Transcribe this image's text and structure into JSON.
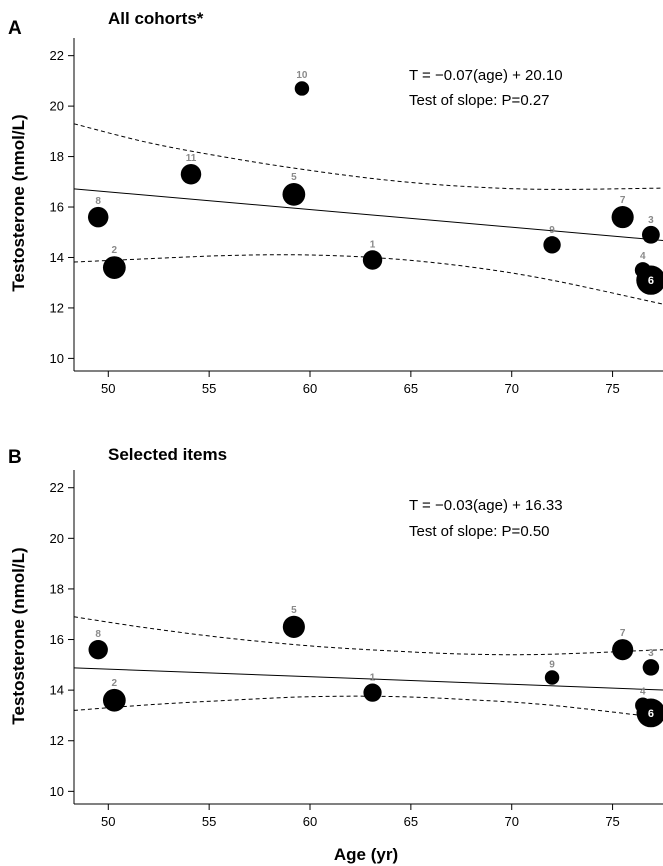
{
  "chart_data": [
    {
      "type": "scatter",
      "panel_label": "A",
      "title": "All cohorts*",
      "xlabel": "",
      "ylabel": "Testosterone (nmol/L)",
      "xlim": [
        48.3,
        77.5
      ],
      "ylim": [
        9.5,
        22.7
      ],
      "xticks": [
        50,
        55,
        60,
        65,
        70,
        75
      ],
      "yticks": [
        10,
        12,
        14,
        16,
        18,
        20,
        22
      ],
      "annotations": [
        "T = −0.07(age) + 20.10",
        "Test of slope: P=0.27"
      ],
      "regression": {
        "slope": -0.07,
        "intercept": 20.1
      },
      "ci_upper": [
        [
          48.3,
          19.3
        ],
        [
          52,
          18.55
        ],
        [
          56,
          17.95
        ],
        [
          60,
          17.45
        ],
        [
          64,
          17.05
        ],
        [
          68,
          16.8
        ],
        [
          72,
          16.7
        ],
        [
          77.5,
          16.75
        ]
      ],
      "ci_lower": [
        [
          48.3,
          13.82
        ],
        [
          52,
          13.95
        ],
        [
          56,
          14.08
        ],
        [
          60,
          14.1
        ],
        [
          64,
          13.95
        ],
        [
          68,
          13.62
        ],
        [
          72,
          13.1
        ],
        [
          77.5,
          12.15
        ]
      ],
      "points": [
        {
          "label": "1",
          "x": 63.1,
          "y": 13.9,
          "size": 2
        },
        {
          "label": "2",
          "x": 50.3,
          "y": 13.6,
          "size": 3
        },
        {
          "label": "3",
          "x": 76.9,
          "y": 14.9,
          "size": 1.6
        },
        {
          "label": "4",
          "x": 76.5,
          "y": 13.5,
          "size": 1.2
        },
        {
          "label": "5",
          "x": 59.2,
          "y": 16.5,
          "size": 3
        },
        {
          "label": "6",
          "x": 76.9,
          "y": 13.1,
          "size": 5.5
        },
        {
          "label": "7",
          "x": 75.5,
          "y": 15.6,
          "size": 2.8
        },
        {
          "label": "8",
          "x": 49.5,
          "y": 15.6,
          "size": 2.3
        },
        {
          "label": "9",
          "x": 72.0,
          "y": 14.5,
          "size": 1.5
        },
        {
          "label": "10",
          "x": 59.6,
          "y": 20.7,
          "size": 0.9
        },
        {
          "label": "11",
          "x": 54.1,
          "y": 17.3,
          "size": 2.3
        }
      ]
    },
    {
      "type": "scatter",
      "panel_label": "B",
      "title": "Selected items",
      "xlabel": "Age (yr)",
      "ylabel": "Testosterone (nmol/L)",
      "xlim": [
        48.3,
        77.5
      ],
      "ylim": [
        9.5,
        22.7
      ],
      "xticks": [
        50,
        55,
        60,
        65,
        70,
        75
      ],
      "yticks": [
        10,
        12,
        14,
        16,
        18,
        20,
        22
      ],
      "annotations": [
        "T = −0.03(age) + 16.33",
        "Test of slope: P=0.50"
      ],
      "regression": {
        "slope": -0.03,
        "intercept": 16.33
      },
      "ci_upper": [
        [
          48.3,
          16.9
        ],
        [
          52,
          16.45
        ],
        [
          56,
          16.05
        ],
        [
          60,
          15.75
        ],
        [
          64,
          15.55
        ],
        [
          68,
          15.42
        ],
        [
          72,
          15.42
        ],
        [
          77.5,
          15.6
        ]
      ],
      "ci_lower": [
        [
          48.3,
          13.2
        ],
        [
          52,
          13.42
        ],
        [
          56,
          13.6
        ],
        [
          60,
          13.74
        ],
        [
          64,
          13.75
        ],
        [
          68,
          13.62
        ],
        [
          72,
          13.4
        ],
        [
          77.5,
          12.9
        ]
      ],
      "points": [
        {
          "label": "1",
          "x": 63.1,
          "y": 13.9,
          "size": 1.7
        },
        {
          "label": "2",
          "x": 50.3,
          "y": 13.6,
          "size": 3
        },
        {
          "label": "3",
          "x": 76.9,
          "y": 14.9,
          "size": 1.3
        },
        {
          "label": "4",
          "x": 76.5,
          "y": 13.4,
          "size": 1.1
        },
        {
          "label": "5",
          "x": 59.2,
          "y": 16.5,
          "size": 2.8
        },
        {
          "label": "6",
          "x": 76.9,
          "y": 13.1,
          "size": 5.3
        },
        {
          "label": "7",
          "x": 75.5,
          "y": 15.6,
          "size": 2.5
        },
        {
          "label": "8",
          "x": 49.5,
          "y": 15.6,
          "size": 2.0
        },
        {
          "label": "9",
          "x": 72.0,
          "y": 14.5,
          "size": 0.9
        }
      ]
    }
  ]
}
